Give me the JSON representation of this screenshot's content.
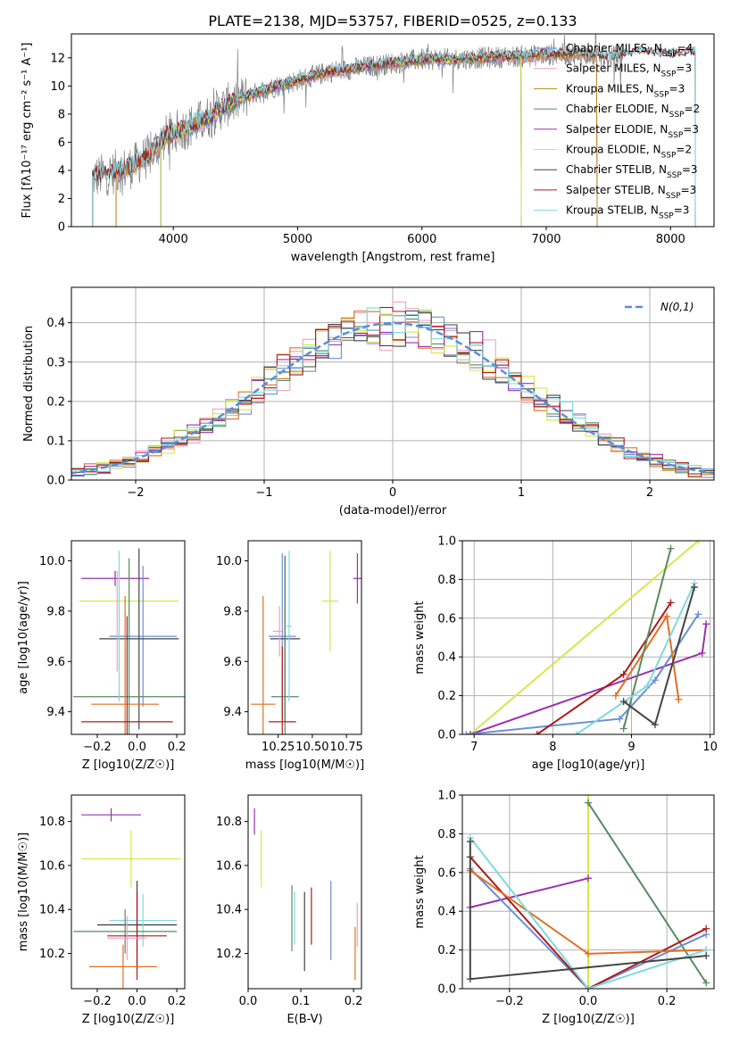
{
  "figure": {
    "title": "PLATE=2138, MJD=53757, FIBERID=0525, z=0.133"
  },
  "colors": {
    "Chabrier MILES": "#6a8fd8",
    "Salpeter MILES": "#f0a0c0",
    "Kroupa MILES": "#b8860b",
    "Chabrier ELODIE": "#5a8a60",
    "Salpeter ELODIE": "#9b30b0",
    "Kroupa ELODIE": "#d4e84a",
    "Chabrier STELIB": "#444444",
    "Salpeter STELIB": "#b01a1a",
    "Kroupa STELIB": "#7fd8e0",
    "orange": "#e07020",
    "data": "#808080",
    "gauss": "#5b8dd9"
  },
  "chart_data": [
    {
      "id": "spectrum",
      "type": "line",
      "xlabel": "wavelength [Angstrom, rest frame]",
      "ylabel": "Flux [fλ10⁻¹⁷ erg cm⁻² s⁻¹ A⁻¹]",
      "xlim": [
        3180,
        8350
      ],
      "ylim": [
        0,
        13.7
      ],
      "xticks": [
        "4000",
        "5000",
        "6000",
        "7000",
        "8000"
      ],
      "yticks": [
        "0",
        "2",
        "4",
        "6",
        "8",
        "10",
        "12"
      ],
      "continuum": {
        "x": [
          3350,
          3500,
          3650,
          3800,
          3950,
          4100,
          4250,
          4400,
          4600,
          4800,
          5000,
          5250,
          5500,
          5750,
          6000,
          6250,
          6500,
          6750,
          7000,
          7250,
          7500,
          7750,
          8000,
          8200
        ],
        "y": [
          3.5,
          3.8,
          4.2,
          5.0,
          6.5,
          7.0,
          7.6,
          8.5,
          9.3,
          9.9,
          10.4,
          11.0,
          11.3,
          11.6,
          11.9,
          11.9,
          12.0,
          12.1,
          12.2,
          12.3,
          12.0,
          12.4,
          12.2,
          12.4
        ]
      },
      "legend": [
        "Chabrier MILES, N_SSP=4",
        "Salpeter MILES, N_SSP=3",
        "Kroupa MILES, N_SSP=3",
        "Chabrier ELODIE, N_SSP=2",
        "Salpeter ELODIE, N_SSP=3",
        "Kroupa ELODIE, N_SSP=2",
        "Chabrier STELIB, N_SSP=3",
        "Salpeter STELIB, N_SSP=3",
        "Kroupa STELIB, N_SSP=3"
      ],
      "legend_display": [
        [
          "Chabrier MILES, N",
          "SSP",
          "=4"
        ],
        [
          "Salpeter MILES, N",
          "SSP",
          "=3"
        ],
        [
          "Kroupa MILES, N",
          "SSP",
          "=3"
        ],
        [
          "Chabrier ELODIE, N",
          "SSP",
          "=2"
        ],
        [
          "Salpeter ELODIE, N",
          "SSP",
          "=3"
        ],
        [
          "Kroupa ELODIE, N",
          "SSP",
          "=2"
        ],
        [
          "Chabrier STELIB, N",
          "SSP",
          "=3"
        ],
        [
          "Salpeter STELIB, N",
          "SSP",
          "=3"
        ],
        [
          "Kroupa STELIB, N",
          "SSP",
          "=3"
        ]
      ],
      "legend_placement": "right"
    },
    {
      "id": "residuals",
      "type": "histogram",
      "xlabel": "(data-model)/error",
      "ylabel": "Normed distribution",
      "xlim": [
        -2.5,
        2.5
      ],
      "ylim": [
        0,
        0.49
      ],
      "xticks": [
        "−2",
        "−1",
        "0",
        "1",
        "2"
      ],
      "yticks": [
        "0.0",
        "0.1",
        "0.2",
        "0.3",
        "0.4"
      ],
      "grid": true,
      "legend": [
        "N(0,1)"
      ],
      "legend_placement": "top-right",
      "bin_width": 0.1
    },
    {
      "id": "age_vs_Z",
      "type": "errorbar",
      "xlabel": "Z [log10(Z/Z☉)]",
      "ylabel": "age [log10(age/yr)]",
      "xlim": [
        -0.33,
        0.24
      ],
      "ylim": [
        9.31,
        10.08
      ],
      "xticks": [
        "−0.2",
        "0.0",
        "0.2"
      ],
      "yticks": [
        "9.4",
        "9.6",
        "9.8",
        "10.0"
      ],
      "points": [
        {
          "c": "Salpeter ELODIE",
          "x": -0.11,
          "xe": 0.17,
          "y": 9.93,
          "ye": 0.03
        },
        {
          "c": "Kroupa ELODIE",
          "x": -0.04,
          "xe": 0.25,
          "y": 9.84,
          "ye": 0.17
        },
        {
          "c": "Chabrier MILES",
          "x": 0.03,
          "xe": 0.17,
          "y": 9.7,
          "ye": 0.28
        },
        {
          "c": "Chabrier STELIB",
          "x": 0.01,
          "xe": 0.2,
          "y": 9.69,
          "ye": 0.36
        },
        {
          "c": "Chabrier ELODIE",
          "x": -0.04,
          "xe": 0.28,
          "y": 9.46,
          "ye": 0.55
        },
        {
          "c": "orange",
          "x": -0.06,
          "xe": 0.17,
          "y": 9.43,
          "ye": 0.43
        },
        {
          "c": "Salpeter STELIB",
          "x": -0.05,
          "xe": 0.23,
          "y": 9.36,
          "ye": 0.42
        },
        {
          "c": "Salpeter MILES",
          "x": -0.1,
          "xe": 0.0,
          "y": 9.76,
          "ye": 0.2
        },
        {
          "c": "Kroupa STELIB",
          "x": -0.09,
          "xe": 0.0,
          "y": 9.74,
          "ye": 0.3
        }
      ]
    },
    {
      "id": "age_vs_mass",
      "type": "errorbar",
      "xlabel": "mass [log10(M/M☉)]",
      "ylabel": "",
      "xlim": [
        10.03,
        10.86
      ],
      "ylim": [
        9.31,
        10.08
      ],
      "xticks": [
        "10.25",
        "10.50",
        "10.75"
      ],
      "yticks": [
        "9.4",
        "9.6",
        "9.8",
        "10.0"
      ],
      "points": [
        {
          "c": "Salpeter ELODIE",
          "x": 10.83,
          "xe": 0.03,
          "y": 9.93,
          "ye": 0.1
        },
        {
          "c": "Kroupa ELODIE",
          "x": 10.63,
          "xe": 0.06,
          "y": 9.84,
          "ye": 0.2
        },
        {
          "c": "Chabrier MILES",
          "x": 10.28,
          "xe": 0.1,
          "y": 9.7,
          "ye": 0.33
        },
        {
          "c": "Chabrier STELIB",
          "x": 10.3,
          "xe": 0.11,
          "y": 9.69,
          "ye": 0.33
        },
        {
          "c": "Chabrier ELODIE",
          "x": 10.3,
          "xe": 0.1,
          "y": 9.46,
          "ye": 0.56
        },
        {
          "c": "orange",
          "x": 10.14,
          "xe": 0.09,
          "y": 9.43,
          "ye": 0.43
        },
        {
          "c": "Salpeter STELIB",
          "x": 10.28,
          "xe": 0.1,
          "y": 9.36,
          "ye": 0.3
        },
        {
          "c": "Salpeter MILES",
          "x": 10.26,
          "xe": 0.05,
          "y": 9.72,
          "ye": 0.1
        },
        {
          "c": "Kroupa STELIB",
          "x": 10.33,
          "xe": 0.02,
          "y": 9.74,
          "ye": 0.3
        }
      ]
    },
    {
      "id": "massweight_vs_age",
      "type": "line",
      "xlabel": "age [log10(age/yr)]",
      "ylabel": "mass weight",
      "xlim": [
        6.85,
        10.05
      ],
      "ylim": [
        0,
        1
      ],
      "xticks": [
        "7",
        "8",
        "9",
        "10"
      ],
      "yticks": [
        "0.0",
        "0.2",
        "0.4",
        "0.6",
        "0.8",
        "1.0"
      ],
      "grid": true,
      "series": [
        {
          "c": "Kroupa ELODIE",
          "x": [
            6.95,
            9.85
          ],
          "y": [
            0.0,
            1.0
          ]
        },
        {
          "c": "Salpeter ELODIE",
          "x": [
            6.95,
            9.9,
            9.95
          ],
          "y": [
            0.0,
            0.42,
            0.57
          ]
        },
        {
          "c": "Chabrier MILES",
          "x": [
            6.9,
            8.85,
            9.3,
            9.85
          ],
          "y": [
            0.0,
            0.08,
            0.28,
            0.62
          ]
        },
        {
          "c": "Salpeter STELIB",
          "x": [
            7.8,
            8.9,
            9.5
          ],
          "y": [
            0.0,
            0.31,
            0.68
          ]
        },
        {
          "c": "orange",
          "x": [
            8.8,
            9.45,
            9.6
          ],
          "y": [
            0.2,
            0.61,
            0.18
          ]
        },
        {
          "c": "Chabrier ELODIE",
          "x": [
            8.9,
            9.5
          ],
          "y": [
            0.03,
            0.96
          ]
        },
        {
          "c": "Kroupa STELIB",
          "x": [
            8.3,
            9.2,
            9.8
          ],
          "y": [
            0.0,
            0.25,
            0.78
          ]
        },
        {
          "c": "Chabrier STELIB",
          "x": [
            8.9,
            9.3,
            9.8
          ],
          "y": [
            0.17,
            0.05,
            0.76
          ]
        }
      ]
    },
    {
      "id": "mass_vs_Z",
      "type": "errorbar",
      "xlabel": "Z [log10(Z/Z☉)]",
      "ylabel": "mass [log10(M/M☉)]",
      "xlim": [
        -0.33,
        0.24
      ],
      "ylim": [
        10.04,
        10.92
      ],
      "xticks": [
        "−0.2",
        "0.0",
        "0.2"
      ],
      "yticks": [
        "10.2",
        "10.4",
        "10.6",
        "10.8"
      ],
      "points": [
        {
          "c": "Salpeter ELODIE",
          "x": -0.13,
          "xe": 0.15,
          "y": 10.83,
          "ye": 0.03
        },
        {
          "c": "Kroupa ELODIE",
          "x": -0.03,
          "xe": 0.25,
          "y": 10.63,
          "ye": 0.13
        },
        {
          "c": "Chabrier MILES",
          "x": 0.0,
          "xe": 0.2,
          "y": 10.33,
          "ye": 0.2
        },
        {
          "c": "Chabrier STELIB",
          "x": 0.0,
          "xe": 0.2,
          "y": 10.33,
          "ye": 0.2
        },
        {
          "c": "Kroupa STELIB",
          "x": 0.03,
          "xe": 0.17,
          "y": 10.35,
          "ye": 0.12
        },
        {
          "c": "Chabrier ELODIE",
          "x": -0.06,
          "xe": 0.26,
          "y": 10.3,
          "ye": 0.1
        },
        {
          "c": "Salpeter STELIB",
          "x": 0.0,
          "xe": 0.15,
          "y": 10.28,
          "ye": 0.2
        },
        {
          "c": "Salpeter MILES",
          "x": -0.05,
          "xe": 0.1,
          "y": 10.27,
          "ye": 0.1
        },
        {
          "c": "orange",
          "x": -0.07,
          "xe": 0.17,
          "y": 10.14,
          "ye": 0.1
        }
      ]
    },
    {
      "id": "mass_vs_ebv",
      "type": "errorbar",
      "xlabel": "E(B-V)",
      "ylabel": "",
      "xlim": [
        0.0,
        0.215
      ],
      "ylim": [
        10.04,
        10.92
      ],
      "xticks": [
        "0.0",
        "0.1",
        "0.2"
      ],
      "yticks": [
        "10.2",
        "10.4",
        "10.6",
        "10.8"
      ],
      "points": [
        {
          "c": "Salpeter ELODIE",
          "x": 0.012,
          "xe": 0.0,
          "y": 10.8,
          "ye": 0.06
        },
        {
          "c": "Kroupa ELODIE",
          "x": 0.025,
          "xe": 0.0,
          "y": 10.63,
          "ye": 0.13
        },
        {
          "c": "Chabrier ELODIE",
          "x": 0.083,
          "xe": 0.0,
          "y": 10.36,
          "ye": 0.15
        },
        {
          "c": "Kroupa STELIB",
          "x": 0.088,
          "xe": 0.0,
          "y": 10.36,
          "ye": 0.12
        },
        {
          "c": "Chabrier STELIB",
          "x": 0.107,
          "xe": 0.0,
          "y": 10.3,
          "ye": 0.18
        },
        {
          "c": "Salpeter STELIB",
          "x": 0.12,
          "xe": 0.0,
          "y": 10.37,
          "ye": 0.13
        },
        {
          "c": "Chabrier MILES",
          "x": 0.157,
          "xe": 0.0,
          "y": 10.35,
          "ye": 0.18
        },
        {
          "c": "orange",
          "x": 0.203,
          "xe": 0.0,
          "y": 10.2,
          "ye": 0.12
        },
        {
          "c": "Salpeter MILES",
          "x": 0.207,
          "xe": 0.0,
          "y": 10.33,
          "ye": 0.1
        }
      ]
    },
    {
      "id": "massweight_vs_Z",
      "type": "line",
      "xlabel": "Z [log10(Z/Z☉)]",
      "ylabel": "mass weight",
      "xlim": [
        -0.32,
        0.32
      ],
      "ylim": [
        0,
        1
      ],
      "xticks": [
        "−0.2",
        "0.0",
        "0.2"
      ],
      "yticks": [
        "0.0",
        "0.2",
        "0.4",
        "0.6",
        "0.8",
        "1.0"
      ],
      "grid": true,
      "series": [
        {
          "c": "Kroupa ELODIE",
          "x": [
            0.0,
            0.0
          ],
          "y": [
            0.0,
            1.0
          ]
        },
        {
          "c": "Chabrier ELODIE",
          "x": [
            0.0,
            0.3
          ],
          "y": [
            0.96,
            0.03
          ]
        },
        {
          "c": "Salpeter ELODIE",
          "x": [
            -0.3,
            0.0
          ],
          "y": [
            0.42,
            0.57
          ]
        },
        {
          "c": "Chabrier MILES",
          "x": [
            -0.3,
            0.0,
            0.3
          ],
          "y": [
            0.62,
            0.0,
            0.28
          ]
        },
        {
          "c": "Salpeter STELIB",
          "x": [
            -0.3,
            0.0,
            0.3
          ],
          "y": [
            0.68,
            0.0,
            0.31
          ]
        },
        {
          "c": "orange",
          "x": [
            -0.3,
            0.0,
            0.3
          ],
          "y": [
            0.61,
            0.18,
            0.2
          ]
        },
        {
          "c": "Kroupa STELIB",
          "x": [
            -0.3,
            0.0,
            0.3
          ],
          "y": [
            0.78,
            0.0,
            0.2
          ]
        },
        {
          "c": "Chabrier STELIB",
          "x": [
            -0.3,
            -0.3,
            0.3
          ],
          "y": [
            0.76,
            0.05,
            0.17
          ]
        }
      ]
    }
  ]
}
